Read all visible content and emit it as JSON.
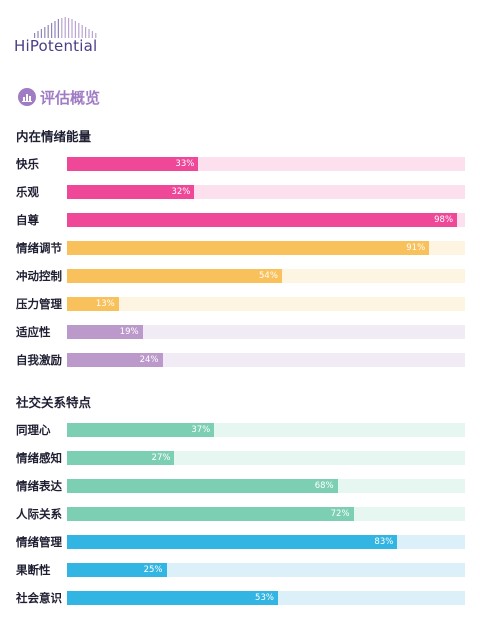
{
  "brand": {
    "name": "HiPotential"
  },
  "overview": {
    "title": "评估概览",
    "icon": "bar-chart-icon",
    "accent": "#a07cc5"
  },
  "sections": [
    {
      "title": "内在情绪能量"
    },
    {
      "title": "社交关系特点"
    }
  ],
  "chart_data": [
    {
      "type": "bar",
      "orientation": "horizontal",
      "title": "内在情绪能量",
      "ylim": [
        0,
        100
      ],
      "categories": [
        "快乐",
        "乐观",
        "自尊",
        "情绪调节",
        "冲动控制",
        "压力管理",
        "适应性",
        "自我激励"
      ],
      "values": [
        33,
        32,
        98,
        91,
        54,
        13,
        19,
        24
      ],
      "value_labels": [
        "33%",
        "32%",
        "98%",
        "91%",
        "54%",
        "13%",
        "19%",
        "24%"
      ],
      "colors": [
        "#ef4899",
        "#ef4899",
        "#ef4899",
        "#f9c15c",
        "#f9c15c",
        "#f9c15c",
        "#bb9acb",
        "#bb9acb"
      ],
      "track_colors": [
        "#fde0ee",
        "#fde0ee",
        "#fde0ee",
        "#fef4e2",
        "#fef4e2",
        "#fef4e2",
        "#f1ebf6",
        "#f1ebf6"
      ],
      "grid": false
    },
    {
      "type": "bar",
      "orientation": "horizontal",
      "title": "社交关系特点",
      "ylim": [
        0,
        100
      ],
      "categories": [
        "同理心",
        "情绪感知",
        "情绪表达",
        "人际关系",
        "情绪管理",
        "果断性",
        "社会意识"
      ],
      "values": [
        37,
        27,
        68,
        72,
        83,
        25,
        53
      ],
      "value_labels": [
        "37%",
        "27%",
        "68%",
        "72%",
        "83%",
        "25%",
        "53%"
      ],
      "colors": [
        "#7dcfb4",
        "#7dcfb4",
        "#7dcfb4",
        "#7dcfb4",
        "#33b5e3",
        "#33b5e3",
        "#33b5e3"
      ],
      "track_colors": [
        "#e6f6f0",
        "#e6f6f0",
        "#e6f6f0",
        "#e6f6f0",
        "#dcf0fa",
        "#dcf0fa",
        "#dcf0fa"
      ],
      "grid": false
    }
  ]
}
